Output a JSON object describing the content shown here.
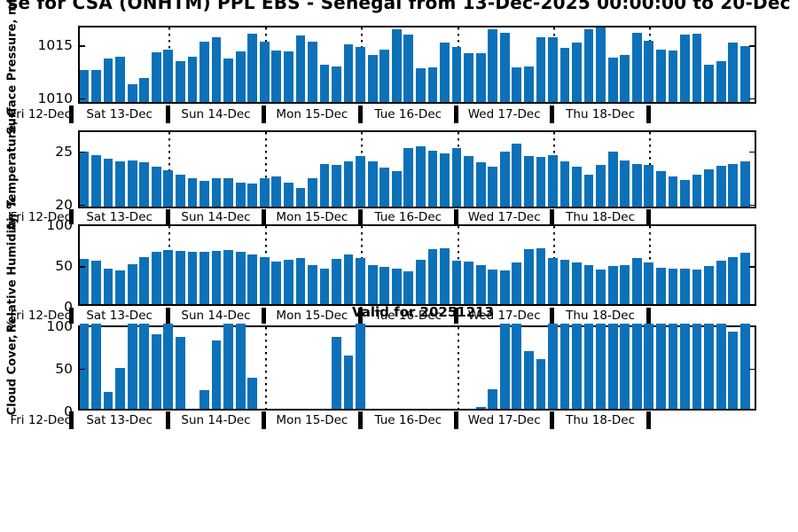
{
  "title": "se for CSA (ONHTM) PPL EBS  - Senegal from 13-Dec-2025 00:00:00 to 20-Dec",
  "valid_label": "Valid for 20251213",
  "colors": {
    "bar": "#0c71b8",
    "text": "#000000",
    "background": "#ffffff"
  },
  "x_axis": {
    "left_label": "Fri 12-Dec",
    "day_labels": [
      "Sat 13-Dec",
      "Sun 14-Dec",
      "Mon 15-Dec",
      "Tue 16-Dec",
      "Wed 17-Dec",
      "Thu 18-Dec"
    ],
    "slots_per_day": 8,
    "interval_hours": 3
  },
  "chart_data": [
    {
      "type": "bar",
      "ylabel": "Surface Pressure, mb",
      "yticks": [
        1010,
        1015
      ],
      "ylim": [
        1009.4,
        1016.8
      ],
      "grid": "dotted-day-boundaries",
      "values": [
        1012.4,
        1012.4,
        1013.5,
        1013.7,
        1011.1,
        1011.7,
        1014.1,
        1014.4,
        1013.3,
        1013.7,
        1015.1,
        1015.5,
        1013.5,
        1014.2,
        1015.9,
        1015.1,
        1014.3,
        1014.2,
        1015.7,
        1015.1,
        1012.9,
        1012.8,
        1014.9,
        1014.6,
        1013.9,
        1014.4,
        1016.3,
        1015.8,
        1012.6,
        1012.7,
        1015.0,
        1014.6,
        1014.0,
        1014.0,
        1016.3,
        1016.0,
        1012.7,
        1012.8,
        1015.5,
        1015.5,
        1014.5,
        1015.0,
        1016.3,
        1016.5,
        1013.6,
        1013.9,
        1016.0,
        1015.2,
        1014.4,
        1014.3,
        1015.8,
        1015.9,
        1012.9,
        1013.3,
        1015.0,
        1014.7
      ]
    },
    {
      "type": "bar",
      "ylabel": "Air Temperature, C",
      "yticks": [
        20,
        25
      ],
      "ylim": [
        19.6,
        26.9
      ],
      "grid": "dotted-day-boundaries",
      "values": [
        24.7,
        24.4,
        24.1,
        23.8,
        23.9,
        23.7,
        23.3,
        23.0,
        22.6,
        22.2,
        22.0,
        22.2,
        22.2,
        21.8,
        21.7,
        22.2,
        22.4,
        21.8,
        21.3,
        22.2,
        23.6,
        23.5,
        23.8,
        24.3,
        23.8,
        23.2,
        22.9,
        25.1,
        25.2,
        24.8,
        24.6,
        25.1,
        24.3,
        23.7,
        23.3,
        24.7,
        25.5,
        24.3,
        24.2,
        24.4,
        23.8,
        23.3,
        22.6,
        23.5,
        24.7,
        23.9,
        23.6,
        23.5,
        22.9,
        22.4,
        22.1,
        22.6,
        23.1,
        23.4,
        23.6,
        23.8
      ]
    },
    {
      "type": "bar",
      "ylabel": "Relative Humidity, %",
      "yticks": [
        0,
        50,
        100
      ],
      "ylim": [
        0,
        100
      ],
      "grid": "dotted-day-boundaries",
      "values": [
        55,
        53,
        44,
        41,
        49,
        58,
        64,
        66,
        65,
        64,
        64,
        65,
        66,
        64,
        61,
        58,
        52,
        54,
        57,
        48,
        43,
        55,
        61,
        56,
        48,
        46,
        44,
        40,
        54,
        67,
        68,
        53,
        52,
        48,
        42,
        41,
        51,
        67,
        69,
        56,
        54,
        51,
        48,
        42,
        47,
        48,
        56,
        51,
        45,
        43,
        43,
        42,
        47,
        53,
        58,
        63
      ]
    },
    {
      "type": "bar",
      "ylabel": "Cloud Cover, %",
      "yticks": [
        0,
        50,
        100
      ],
      "ylim": [
        0,
        100
      ],
      "grid": "dotted-day-boundaries",
      "values": [
        100,
        100,
        19,
        47,
        100,
        100,
        87,
        100,
        84,
        0,
        21,
        80,
        100,
        100,
        36,
        0,
        0,
        0,
        0,
        0,
        0,
        84,
        62,
        100,
        0,
        0,
        0,
        0,
        0,
        0,
        0,
        0,
        0,
        2,
        22,
        100,
        100,
        67,
        58,
        100,
        100,
        100,
        100,
        100,
        100,
        100,
        100,
        100,
        100,
        100,
        100,
        100,
        100,
        100,
        90,
        100
      ]
    }
  ]
}
